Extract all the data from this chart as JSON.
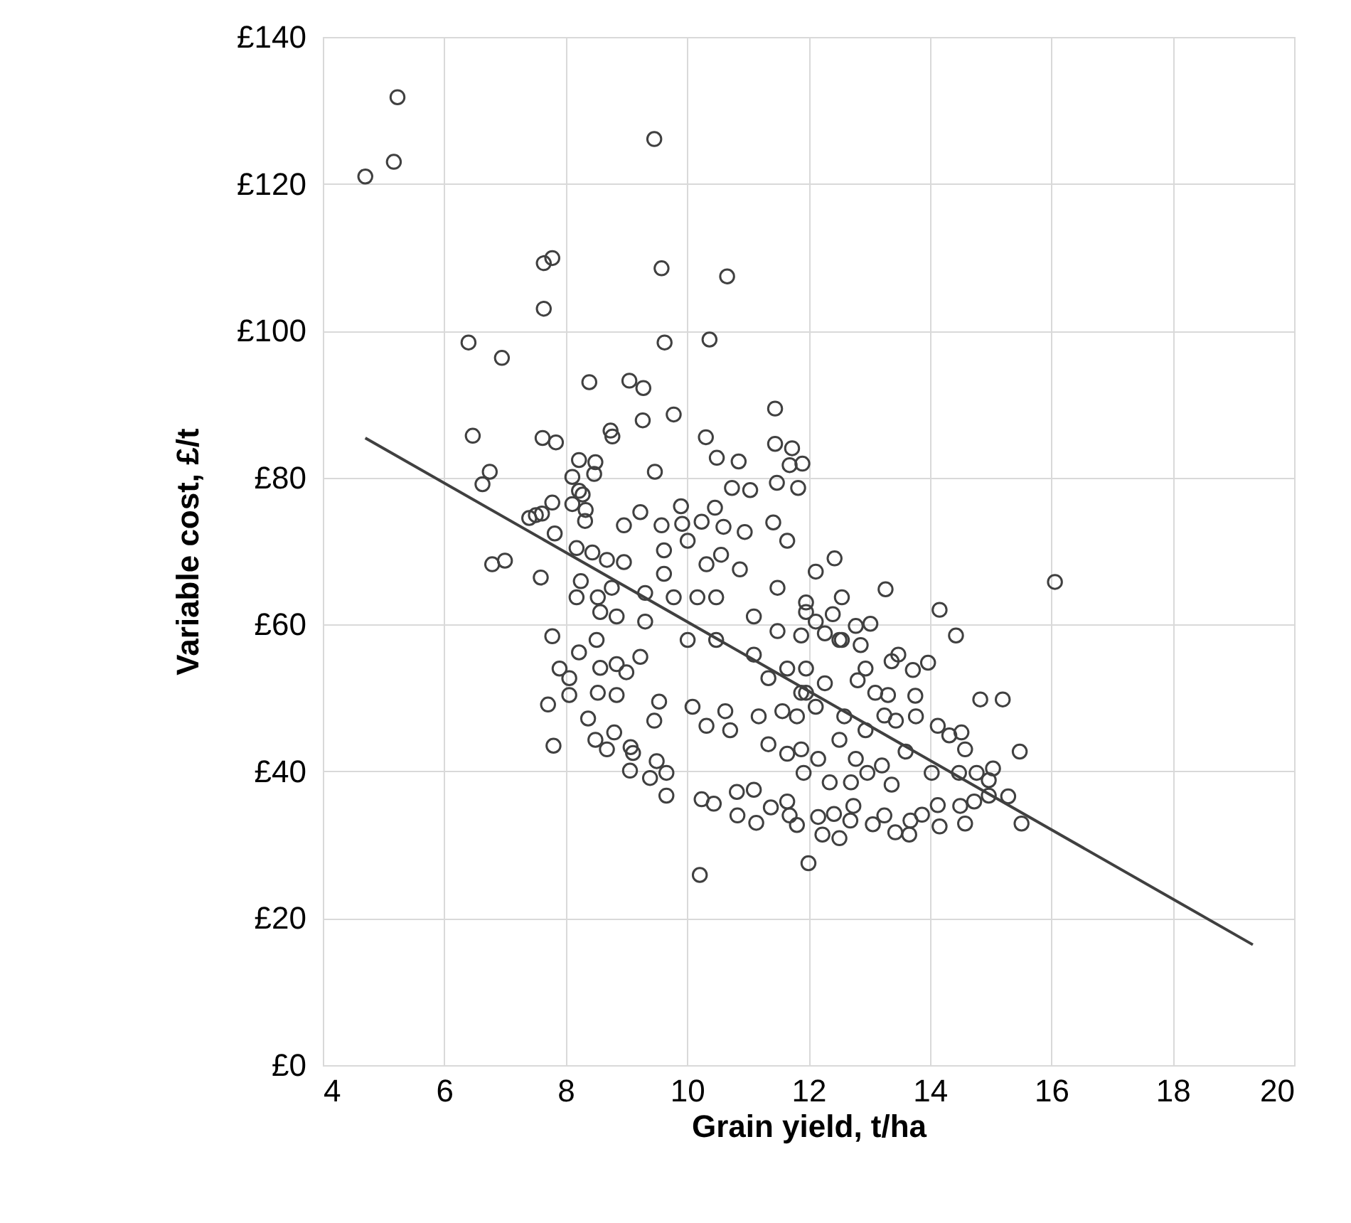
{
  "chart_data": {
    "type": "scatter",
    "xlabel": "Grain yield, t/ha",
    "ylabel": "Variable cost, £/t",
    "xlim": [
      4,
      20
    ],
    "ylim": [
      0,
      140
    ],
    "xticks": [
      4,
      6,
      8,
      10,
      12,
      14,
      16,
      18,
      20
    ],
    "yticks": [
      {
        "value": 0,
        "label": "£0"
      },
      {
        "value": 20,
        "label": "£20"
      },
      {
        "value": 40,
        "label": "£40"
      },
      {
        "value": 60,
        "label": "£60"
      },
      {
        "value": 80,
        "label": "£80"
      },
      {
        "value": 100,
        "label": "£100"
      },
      {
        "value": 120,
        "label": "£120"
      },
      {
        "value": 140,
        "label": "£140"
      }
    ],
    "grid": true,
    "series": [
      {
        "marker": "circle",
        "color": "#404040",
        "x": [
          5.23,
          5.17,
          4.7,
          9.46,
          7.64,
          7.78,
          9.58,
          10.66,
          7.64,
          6.4,
          6.95,
          9.63,
          10.37,
          8.39,
          9.05,
          9.28,
          9.27,
          9.78,
          11.45,
          6.47,
          7.62,
          7.84,
          8.74,
          8.77,
          10.31,
          10.49,
          10.85,
          11.45,
          11.73,
          11.69,
          11.9,
          8.22,
          8.49,
          8.47,
          9.47,
          6.75,
          6.63,
          8.11,
          8.22,
          8.28,
          8.11,
          8.33,
          8.32,
          10.74,
          11.04,
          11.48,
          11.83,
          7.78,
          7.4,
          7.51,
          7.61,
          9.23,
          9.9,
          10.46,
          10.24,
          8.96,
          9.58,
          9.92,
          10.6,
          10.95,
          11.42,
          7.82,
          6.79,
          7.0,
          7.59,
          8.18,
          8.44,
          8.68,
          8.96,
          8.25,
          8.18,
          8.53,
          8.76,
          8.57,
          8.84,
          7.78,
          8.22,
          8.51,
          8.57,
          8.84,
          9.0,
          9.23,
          7.9,
          8.06,
          8.06,
          7.71,
          8.53,
          8.84,
          8.37,
          8.49,
          8.8,
          8.68,
          9.07,
          9.11,
          7.8,
          9.06,
          9.39,
          9.5,
          9.66,
          9.66,
          10.24,
          10.44,
          10.82,
          11.1,
          10.83,
          11.14,
          11.38,
          11.65,
          11.81,
          11.69,
          10.21,
          12.0,
          10.01,
          10.48,
          11.1,
          11.34,
          11.65,
          10.63,
          11.18,
          11.57,
          11.88,
          10.09,
          9.54,
          9.78,
          10.17,
          9.31,
          10.48,
          10.71,
          11.34,
          11.65,
          9.46,
          10.32,
          11.49,
          11.88,
          11.1,
          11.96,
          10.87,
          10.56,
          9.62,
          10.01,
          10.32,
          11.49,
          11.65,
          9.31,
          9.62,
          16.06,
          12.43,
          12.12,
          13.27,
          14.16,
          14.43,
          13.02,
          12.78,
          13.48,
          13.37,
          13.72,
          13.97,
          12.86,
          12.55,
          12.27,
          14.83,
          15.2,
          13.76,
          13.77,
          12.94,
          12.81,
          13.1,
          13.31,
          13.25,
          13.44,
          14.13,
          14.32,
          14.52,
          14.58,
          13.6,
          15.48,
          14.03,
          14.48,
          14.77,
          15.04,
          14.97,
          14.5,
          14.73,
          14.97,
          15.29,
          15.51,
          14.13,
          14.16,
          14.58,
          13.87,
          13.68,
          13.66,
          13.43,
          13.25,
          13.06,
          12.74,
          12.69,
          12.51,
          12.23,
          12.42,
          12.16,
          13.21,
          12.97,
          13.37,
          12.7,
          12.35,
          11.92,
          12.51,
          12.78,
          12.16,
          11.88,
          12.94,
          12.59,
          12.12,
          11.81,
          11.96,
          12.55,
          12.4,
          12.12,
          12.51,
          11.96,
          12.27,
          11.96
        ],
        "values": [
          131.8,
          123.0,
          121.0,
          126.1,
          109.2,
          109.9,
          108.5,
          107.4,
          103.0,
          98.4,
          96.3,
          98.4,
          98.8,
          93.0,
          93.2,
          92.2,
          87.8,
          88.6,
          89.4,
          85.7,
          85.4,
          84.8,
          86.4,
          85.6,
          85.5,
          82.7,
          82.2,
          84.6,
          84.0,
          81.7,
          81.9,
          82.4,
          82.1,
          80.5,
          80.8,
          80.8,
          79.1,
          80.1,
          78.2,
          77.7,
          76.4,
          75.6,
          74.1,
          78.6,
          78.3,
          79.3,
          78.6,
          76.6,
          74.5,
          74.9,
          75.1,
          75.3,
          76.1,
          75.9,
          74.0,
          73.5,
          73.5,
          73.7,
          73.3,
          72.6,
          73.9,
          72.4,
          68.2,
          68.7,
          66.4,
          70.4,
          69.8,
          68.8,
          68.5,
          65.9,
          63.7,
          63.7,
          65.0,
          61.7,
          61.1,
          58.4,
          56.2,
          57.9,
          54.1,
          54.6,
          53.5,
          55.6,
          54.0,
          52.7,
          50.4,
          49.1,
          50.7,
          50.4,
          47.2,
          44.3,
          45.3,
          43.0,
          43.3,
          42.5,
          43.5,
          40.1,
          39.1,
          41.4,
          39.8,
          36.7,
          36.2,
          35.6,
          37.2,
          37.5,
          34.0,
          33.0,
          35.1,
          35.9,
          32.7,
          34.0,
          25.9,
          27.5,
          57.9,
          57.9,
          55.9,
          52.7,
          54.0,
          48.2,
          47.5,
          48.2,
          50.7,
          48.8,
          49.5,
          63.7,
          63.7,
          60.4,
          63.7,
          45.6,
          43.7,
          42.4,
          46.9,
          46.2,
          59.1,
          58.5,
          61.1,
          61.7,
          67.5,
          69.5,
          70.1,
          71.4,
          68.2,
          65.0,
          71.4,
          64.3,
          66.9,
          65.8,
          69.0,
          67.2,
          64.8,
          62.0,
          58.5,
          60.1,
          59.8,
          55.9,
          55.0,
          53.8,
          54.8,
          57.2,
          57.9,
          58.8,
          49.8,
          49.8,
          50.3,
          47.5,
          54.0,
          52.4,
          50.7,
          50.4,
          47.6,
          46.9,
          46.2,
          44.9,
          45.3,
          43.0,
          42.7,
          42.7,
          39.8,
          39.8,
          39.8,
          40.4,
          38.8,
          35.3,
          35.9,
          36.7,
          36.6,
          32.9,
          35.4,
          32.5,
          32.9,
          34.1,
          33.3,
          31.4,
          31.7,
          34.0,
          32.8,
          35.3,
          33.3,
          30.9,
          31.4,
          34.2,
          33.8,
          40.8,
          39.8,
          38.2,
          38.5,
          38.5,
          39.8,
          44.3,
          41.7,
          41.7,
          43.0,
          45.6,
          47.5,
          48.8,
          47.5,
          63.0,
          63.7,
          61.4,
          60.4,
          57.9,
          54.0,
          52.0,
          50.7
        ]
      },
      {
        "type": "line",
        "color": "#404040",
        "x": [
          4.7,
          19.32
        ],
        "values": [
          85.4,
          16.4
        ]
      }
    ]
  }
}
